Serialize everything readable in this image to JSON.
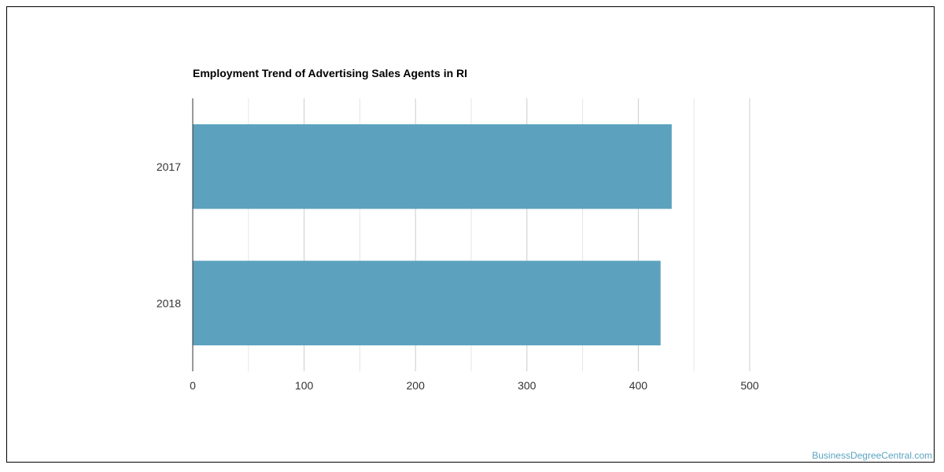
{
  "chart_data": {
    "type": "bar",
    "orientation": "horizontal",
    "title": "Employment Trend of Advertising Sales Agents in RI",
    "categories": [
      "2017",
      "2018"
    ],
    "values": [
      430,
      420
    ],
    "xlim": [
      0,
      500
    ],
    "xticks": [
      0,
      100,
      200,
      300,
      400,
      500
    ],
    "gridlines": true,
    "bar_color": "#5ca2bf"
  },
  "watermark": "BusinessDegreeCentral.com"
}
